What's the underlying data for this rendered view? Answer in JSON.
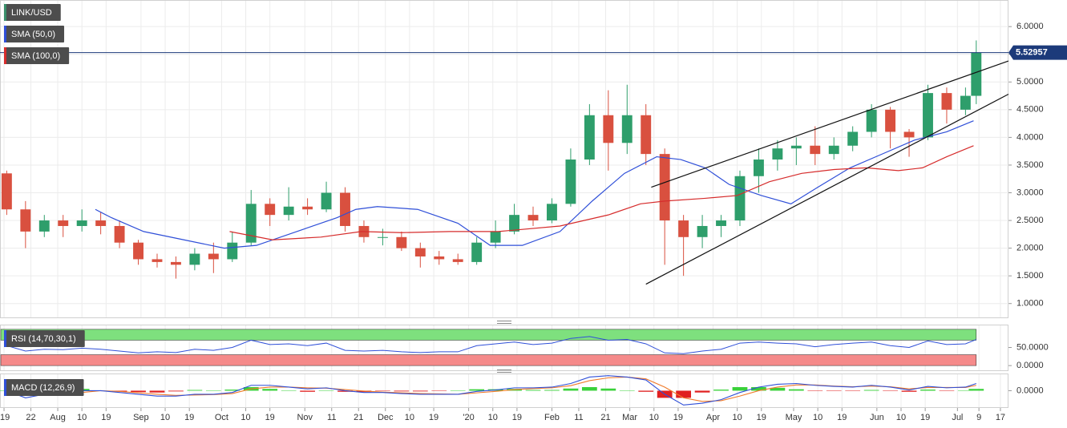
{
  "chart_data": [
    {
      "type": "candlestick",
      "xlim": [
        -1.5,
        374
      ],
      "xticks": [
        {
          "value": 0,
          "label": "'19"
        },
        {
          "value": 10,
          "label": "22"
        },
        {
          "value": 20,
          "label": "Aug"
        },
        {
          "value": 29,
          "label": "10"
        },
        {
          "value": 38,
          "label": "19"
        },
        {
          "value": 51,
          "label": "Sep"
        },
        {
          "value": 60,
          "label": "10"
        },
        {
          "value": 69,
          "label": "19"
        },
        {
          "value": 81,
          "label": "Oct"
        },
        {
          "value": 90,
          "label": "10"
        },
        {
          "value": 99,
          "label": "19"
        },
        {
          "value": 112,
          "label": "Nov"
        },
        {
          "value": 122,
          "label": "11"
        },
        {
          "value": 132,
          "label": "21"
        },
        {
          "value": 142,
          "label": "Dec"
        },
        {
          "value": 151,
          "label": "10"
        },
        {
          "value": 160,
          "label": "19"
        },
        {
          "value": 173,
          "label": "'20"
        },
        {
          "value": 182,
          "label": "10"
        },
        {
          "value": 191,
          "label": "19"
        },
        {
          "value": 204,
          "label": "Feb"
        },
        {
          "value": 214,
          "label": "11"
        },
        {
          "value": 224,
          "label": "21"
        },
        {
          "value": 233,
          "label": "Mar"
        },
        {
          "value": 242,
          "label": "10"
        },
        {
          "value": 251,
          "label": "19"
        },
        {
          "value": 264,
          "label": "Apr"
        },
        {
          "value": 273,
          "label": "10"
        },
        {
          "value": 282,
          "label": "19"
        },
        {
          "value": 294,
          "label": "May"
        },
        {
          "value": 303,
          "label": "10"
        },
        {
          "value": 312,
          "label": "19"
        },
        {
          "value": 325,
          "label": "Jun"
        },
        {
          "value": 334,
          "label": "10"
        },
        {
          "value": 343,
          "label": "19"
        },
        {
          "value": 355,
          "label": "Jul"
        },
        {
          "value": 363,
          "label": "9"
        },
        {
          "value": 371,
          "label": "17"
        }
      ],
      "ylim": [
        0.75,
        6.48
      ],
      "yticks": [
        {
          "value": 1,
          "label": "1.0000"
        },
        {
          "value": 1.5,
          "label": "1.5000"
        },
        {
          "value": 2,
          "label": "2.0000"
        },
        {
          "value": 2.5,
          "label": "2.5000"
        },
        {
          "value": 3,
          "label": "3.0000"
        },
        {
          "value": 3.5,
          "label": "3.5000"
        },
        {
          "value": 4,
          "label": "4.0000"
        },
        {
          "value": 4.5,
          "label": "4.5000"
        },
        {
          "value": 5,
          "label": "5.0000"
        },
        {
          "value": 5.5,
          "label": "5.5000"
        },
        {
          "value": 6,
          "label": "6.0000"
        }
      ],
      "grid": true,
      "last_price_color": "#1c3a7a",
      "series": [
        {
          "name": "LINK/USD",
          "color": "#3a8f6a",
          "up_color": "#2e9e6b",
          "down_color": "#d9503f",
          "x": [
            1,
            8,
            15,
            22,
            29,
            36,
            43,
            50,
            57,
            64,
            71,
            78,
            85,
            92,
            99,
            106,
            113,
            120,
            127,
            134,
            141,
            148,
            155,
            162,
            169,
            176,
            183,
            190,
            197,
            204,
            211,
            218,
            225,
            232,
            239,
            246,
            253,
            260,
            267,
            274,
            281,
            288,
            295,
            302,
            309,
            316,
            323,
            330,
            337,
            344,
            351,
            358,
            362
          ],
          "open": [
            3.35,
            2.7,
            2.3,
            2.5,
            2.4,
            2.5,
            2.4,
            2.1,
            1.8,
            1.75,
            1.7,
            1.9,
            1.8,
            2.1,
            2.8,
            2.6,
            2.75,
            2.7,
            3.0,
            2.4,
            2.2,
            2.2,
            2.0,
            1.85,
            1.8,
            1.75,
            2.1,
            2.3,
            2.6,
            2.5,
            2.8,
            3.6,
            4.4,
            3.9,
            4.4,
            3.7,
            2.5,
            2.2,
            2.4,
            2.5,
            3.3,
            3.6,
            3.8,
            3.85,
            3.7,
            3.85,
            4.1,
            4.5,
            4.1,
            4.0,
            4.8,
            4.5,
            4.75
          ],
          "high": [
            3.4,
            2.85,
            2.6,
            2.6,
            2.7,
            2.65,
            2.5,
            2.15,
            1.9,
            1.85,
            2.0,
            2.1,
            2.3,
            3.05,
            2.9,
            3.1,
            2.9,
            3.2,
            3.1,
            2.5,
            2.35,
            2.3,
            2.1,
            1.95,
            1.9,
            2.2,
            2.5,
            2.8,
            2.75,
            2.9,
            3.8,
            4.6,
            4.85,
            4.95,
            4.6,
            3.8,
            2.6,
            2.6,
            2.6,
            3.4,
            3.8,
            3.95,
            4.0,
            4.2,
            4.0,
            4.2,
            4.6,
            4.55,
            4.15,
            4.95,
            4.9,
            4.9,
            5.75
          ],
          "low": [
            2.6,
            2.0,
            2.2,
            2.2,
            2.3,
            2.25,
            2.0,
            1.7,
            1.65,
            1.45,
            1.6,
            1.55,
            1.75,
            2.05,
            2.4,
            2.5,
            2.6,
            2.65,
            2.3,
            2.1,
            2.05,
            1.95,
            1.65,
            1.7,
            1.7,
            1.7,
            2.0,
            2.25,
            2.4,
            2.45,
            2.75,
            3.5,
            3.4,
            3.7,
            3.5,
            1.7,
            1.5,
            2.0,
            2.2,
            2.4,
            3.0,
            3.4,
            3.5,
            3.5,
            3.6,
            3.75,
            4.0,
            3.8,
            3.65,
            3.95,
            4.25,
            4.4,
            4.6
          ],
          "close": [
            2.7,
            2.3,
            2.5,
            2.4,
            2.5,
            2.4,
            2.1,
            1.8,
            1.75,
            1.7,
            1.9,
            1.8,
            2.1,
            2.8,
            2.6,
            2.75,
            2.7,
            3.0,
            2.4,
            2.2,
            2.2,
            2.0,
            1.85,
            1.8,
            1.75,
            2.1,
            2.3,
            2.6,
            2.5,
            2.8,
            3.6,
            4.4,
            3.9,
            4.4,
            3.7,
            2.5,
            2.2,
            2.4,
            2.5,
            3.3,
            3.6,
            3.8,
            3.85,
            3.7,
            3.85,
            4.1,
            4.5,
            4.1,
            4.0,
            4.8,
            4.5,
            4.75,
            5.52957
          ]
        },
        {
          "name": "SMA (50,0)",
          "color": "#2f4fd8",
          "x": [
            34,
            40,
            52,
            67,
            82,
            94,
            112,
            124,
            131,
            139,
            154,
            169,
            181,
            193,
            207,
            219,
            231,
            243,
            252,
            261,
            270,
            282,
            293,
            303,
            315,
            327,
            339,
            351,
            361
          ],
          "values": [
            2.7,
            2.55,
            2.3,
            2.15,
            2.0,
            2.05,
            2.35,
            2.55,
            2.7,
            2.75,
            2.7,
            2.45,
            2.05,
            2.05,
            2.3,
            2.85,
            3.35,
            3.65,
            3.6,
            3.45,
            3.15,
            2.95,
            2.8,
            3.1,
            3.45,
            3.7,
            3.95,
            4.1,
            4.3
          ]
        },
        {
          "name": "SMA (100,0)",
          "color": "#d62c2c",
          "x": [
            84,
            100,
            118,
            133,
            148,
            166,
            184,
            207,
            225,
            237,
            246,
            261,
            273,
            285,
            297,
            309,
            321,
            333,
            342,
            351,
            361
          ],
          "values": [
            2.3,
            2.15,
            2.2,
            2.3,
            2.28,
            2.3,
            2.3,
            2.4,
            2.6,
            2.8,
            2.85,
            2.9,
            2.95,
            3.2,
            3.35,
            3.42,
            3.45,
            3.4,
            3.45,
            3.65,
            3.85
          ]
        }
      ],
      "trendlines": [
        {
          "color": "#111111",
          "x": [
            241,
            374
          ],
          "values": [
            3.1,
            5.38
          ]
        },
        {
          "color": "#111111",
          "x": [
            239,
            374
          ],
          "values": [
            1.35,
            4.78
          ]
        }
      ]
    },
    {
      "type": "line",
      "title": "RSI (14,70,30,1)",
      "ylim": [
        -13,
        113
      ],
      "yticks": [
        {
          "value": 0,
          "label": "0.0000"
        },
        {
          "value": 50,
          "label": "50.0000"
        }
      ],
      "overbought": [
        70,
        100
      ],
      "overbought_color": "#7ee07e",
      "oversold": [
        0,
        30
      ],
      "oversold_color": "#f58a8a",
      "series": [
        {
          "color": "#2f4fd8",
          "values": [
            55,
            40,
            45,
            44,
            48,
            45,
            40,
            35,
            38,
            36,
            45,
            42,
            50,
            70,
            58,
            60,
            55,
            62,
            42,
            40,
            42,
            38,
            36,
            38,
            38,
            55,
            60,
            65,
            58,
            62,
            75,
            80,
            70,
            72,
            60,
            35,
            33,
            40,
            45,
            62,
            65,
            62,
            60,
            52,
            58,
            62,
            65,
            55,
            50,
            68,
            58,
            60,
            72
          ]
        }
      ]
    },
    {
      "type": "macd",
      "title": "MACD (12,26,9)",
      "ylim": [
        -0.46,
        0.48
      ],
      "yticks": [
        {
          "value": 0,
          "label": "0.0000"
        }
      ],
      "macd": {
        "color": "#2f4fd8",
        "values": [
          0.0,
          -0.2,
          -0.1,
          -0.05,
          0.0,
          0.0,
          -0.05,
          -0.1,
          -0.15,
          -0.15,
          -0.1,
          -0.1,
          -0.05,
          0.15,
          0.15,
          0.1,
          0.05,
          0.08,
          0.0,
          -0.05,
          -0.05,
          -0.08,
          -0.1,
          -0.1,
          -0.1,
          -0.02,
          0.02,
          0.08,
          0.08,
          0.1,
          0.2,
          0.38,
          0.42,
          0.38,
          0.3,
          -0.1,
          -0.4,
          -0.35,
          -0.25,
          -0.05,
          0.1,
          0.18,
          0.2,
          0.15,
          0.12,
          0.1,
          0.15,
          0.1,
          0.02,
          0.12,
          0.08,
          0.1,
          0.2
        ]
      },
      "signal": {
        "color": "#f07b2a",
        "values": [
          0.0,
          -0.1,
          -0.12,
          -0.1,
          -0.05,
          0.0,
          -0.02,
          -0.06,
          -0.1,
          -0.13,
          -0.12,
          -0.11,
          -0.08,
          0.05,
          0.1,
          0.1,
          0.08,
          0.07,
          0.03,
          -0.01,
          -0.04,
          -0.06,
          -0.08,
          -0.09,
          -0.1,
          -0.06,
          -0.02,
          0.03,
          0.06,
          0.08,
          0.14,
          0.28,
          0.36,
          0.38,
          0.33,
          0.1,
          -0.2,
          -0.3,
          -0.28,
          -0.15,
          0.0,
          0.1,
          0.16,
          0.16,
          0.13,
          0.11,
          0.13,
          0.11,
          0.05,
          0.09,
          0.09,
          0.09,
          0.15
        ]
      },
      "histogram": {
        "up_color": "#3ad13a",
        "down_color": "#e02020",
        "values": [
          0,
          -0.1,
          0.02,
          0.05,
          0.05,
          0,
          -0.03,
          -0.04,
          -0.05,
          -0.02,
          0.02,
          0.01,
          0.03,
          0.1,
          0.05,
          0,
          -0.03,
          0.01,
          -0.03,
          -0.04,
          -0.01,
          -0.02,
          -0.02,
          -0.01,
          0,
          0.04,
          0.04,
          0.05,
          0.02,
          0.02,
          0.06,
          0.1,
          0.06,
          0,
          -0.03,
          -0.2,
          -0.2,
          -0.05,
          0.03,
          0.1,
          0.1,
          0.08,
          0.04,
          -0.01,
          -0.01,
          -0.01,
          0.02,
          -0.01,
          -0.03,
          0.03,
          -0.01,
          0.01,
          0.05
        ]
      }
    }
  ]
}
